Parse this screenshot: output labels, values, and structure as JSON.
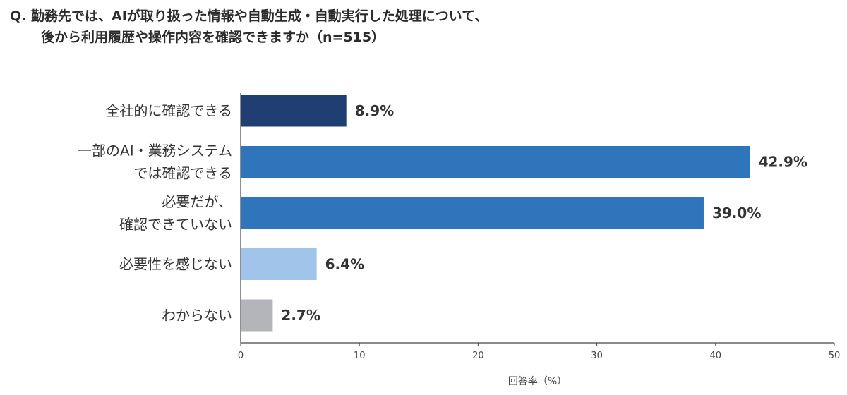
{
  "question": {
    "line1": "Q. 勤務先では、AIが取り扱った情報や自動生成・自動実行した処理について、",
    "line2": "後から利用履歴や操作内容を確認できますか（n=515）"
  },
  "chart_data": {
    "type": "bar",
    "orientation": "horizontal",
    "categories": [
      [
        "全社的に確認できる"
      ],
      [
        "一部のAI・業務システム",
        "では確認できる"
      ],
      [
        "必要だが、",
        "確認できていない"
      ],
      [
        "必要性を感じない"
      ],
      [
        "わからない"
      ]
    ],
    "values": [
      8.9,
      42.9,
      39.0,
      6.4,
      2.7
    ],
    "value_labels": [
      "8.9%",
      "42.9%",
      "39.0%",
      "6.4%",
      "2.7%"
    ],
    "colors": [
      "#1f3f73",
      "#2f75bc",
      "#2f75bc",
      "#a0c4ea",
      "#b4b4bb"
    ],
    "xlim": [
      0,
      50
    ],
    "xticks": [
      0,
      10,
      20,
      30,
      40,
      50
    ],
    "xlabel": "回答率（%）",
    "grid": false
  }
}
